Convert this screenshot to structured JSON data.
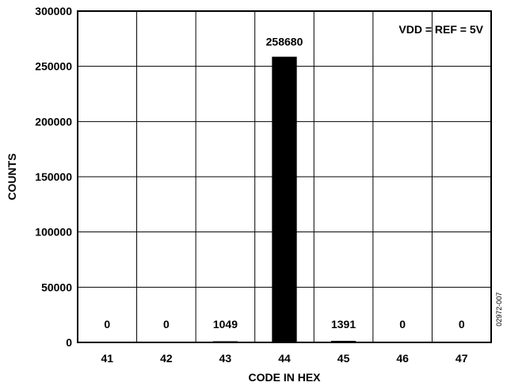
{
  "chart_data": {
    "type": "bar",
    "categories": [
      "41",
      "42",
      "43",
      "44",
      "45",
      "46",
      "47"
    ],
    "values": [
      0,
      0,
      1049,
      258680,
      1391,
      0,
      0
    ],
    "data_labels": [
      "0",
      "0",
      "1049",
      "258680",
      "1391",
      "0",
      "0"
    ],
    "title": "",
    "xlabel": "CODE IN HEX",
    "ylabel": "COUNTS",
    "ylim": [
      0,
      300000
    ],
    "yticks": [
      0,
      50000,
      100000,
      150000,
      200000,
      250000,
      300000
    ],
    "ytick_labels": [
      "0",
      "50000",
      "100000",
      "150000",
      "200000",
      "250000",
      "300000"
    ],
    "grid": true,
    "annotation": "VDD = REF = 5V",
    "figure_code": "02972-007",
    "bar_color": "#000000"
  }
}
